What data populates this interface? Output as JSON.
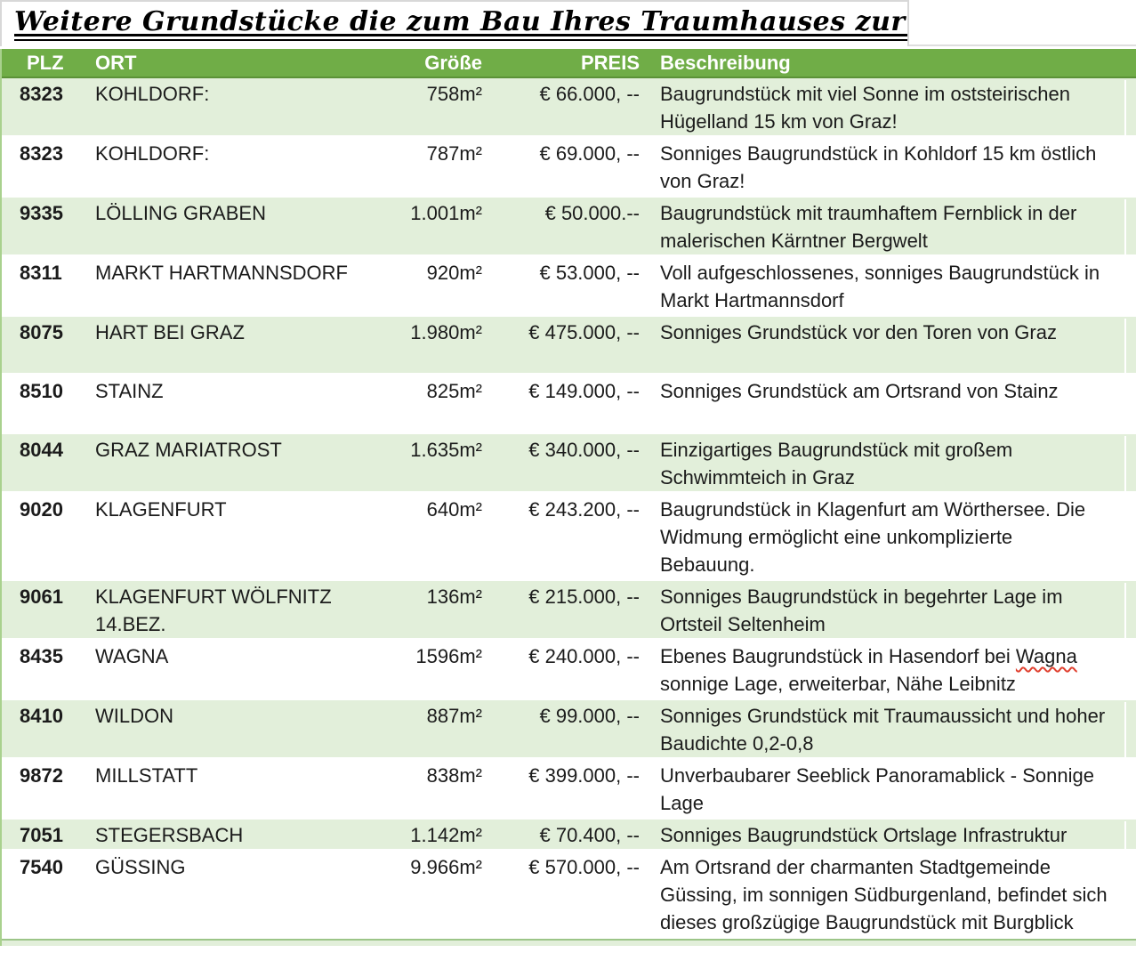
{
  "title": "Weitere Grundstücke die zum Bau Ihres Traumhauses zur Verfügung stehen",
  "colors": {
    "header_green": "#70AD47",
    "banded_row_green": "#E2EFDA",
    "header_text": "#FFFFFF",
    "body_text": "#1B1B1B",
    "spellcheck_underline_red": "#E0402F"
  },
  "table": {
    "columns": [
      {
        "key": "plz",
        "label": "PLZ"
      },
      {
        "key": "ort",
        "label": "ORT"
      },
      {
        "key": "groesse",
        "label": "Größe"
      },
      {
        "key": "preis",
        "label": "PREIS"
      },
      {
        "key": "beschreibung",
        "label": "Beschreibung"
      }
    ],
    "rows": [
      {
        "plz": "8323",
        "ort": "KOHLDORF:",
        "groesse": "758m²",
        "preis": "€ 66.000, --",
        "beschreibung": "Baugrundstück mit viel Sonne im oststeirischen Hügelland 15 km von Graz!"
      },
      {
        "plz": "8323",
        "ort": "KOHLDORF:",
        "groesse": "787m²",
        "preis": "€ 69.000, --",
        "beschreibung": "Sonniges Baugrundstück in Kohldorf 15 km östlich von Graz!"
      },
      {
        "plz": "9335",
        "ort": "LÖLLING GRABEN",
        "groesse": "1.001m²",
        "preis": "€ 50.000.--",
        "beschreibung": "Baugrundstück mit traumhaftem Fernblick in der malerischen Kärntner Bergwelt"
      },
      {
        "plz": "8311",
        "ort": "MARKT HARTMANNSDORF",
        "groesse": "920m²",
        "preis": "€ 53.000, --",
        "beschreibung": "Voll aufgeschlossenes, sonniges Baugrundstück in Markt Hartmannsdorf"
      },
      {
        "plz": "8075",
        "ort": "HART BEI GRAZ",
        "groesse": "1.980m²",
        "preis": "€ 475.000, --",
        "beschreibung": "Sonniges Grundstück vor den Toren von Graz"
      },
      {
        "plz": "8510",
        "ort": "STAINZ",
        "groesse": "825m²",
        "preis": "€ 149.000, --",
        "beschreibung": "Sonniges Grundstück am Ortsrand von Stainz"
      },
      {
        "plz": "8044",
        "ort": "GRAZ MARIATROST",
        "groesse": "1.635m²",
        "preis": "€ 340.000, --",
        "beschreibung": "Einzigartiges Baugrundstück mit großem Schwimmteich in Graz"
      },
      {
        "plz": "9020",
        "ort": "KLAGENFURT",
        "groesse": "640m²",
        "preis": "€ 243.200, --",
        "beschreibung": "Baugrundstück in Klagenfurt am Wörthersee. Die Widmung ermöglicht eine unkomplizierte Bebauung."
      },
      {
        "plz": "9061",
        "ort": "KLAGENFURT WÖLFNITZ 14.BEZ.",
        "groesse": "136m²",
        "preis": "€ 215.000, --",
        "beschreibung": "Sonniges Baugrundstück in begehrter Lage im Ortsteil Seltenheim"
      },
      {
        "plz": "8435",
        "ort": "WAGNA",
        "groesse": "1596m²",
        "preis": "€ 240.000, --",
        "beschreibung": "Ebenes Baugrundstück in Hasendorf bei Wagna sonnige Lage, erweiterbar, Nähe Leibnitz",
        "misspelled_word": "Wagna"
      },
      {
        "plz": "8410",
        "ort": "WILDON",
        "groesse": "887m²",
        "preis": "€ 99.000, --",
        "beschreibung": "Sonniges Grundstück mit Traumaussicht und hoher Baudichte 0,2-0,8"
      },
      {
        "plz": "9872",
        "ort": "MILLSTATT",
        "groesse": "838m²",
        "preis": "€ 399.000, --",
        "beschreibung": "Unverbaubarer Seeblick Panoramablick - Sonnige Lage"
      },
      {
        "plz": "7051",
        "ort": "STEGERSBACH",
        "groesse": "1.142m²",
        "preis": "€ 70.400, --",
        "beschreibung": "Sonniges Baugrundstück Ortslage Infrastruktur",
        "compact": true
      },
      {
        "plz": "7540",
        "ort": "GÜSSING",
        "groesse": "9.966m²",
        "preis": "€ 570.000, --",
        "beschreibung": "Am Ortsrand der charmanten Stadtgemeinde Güssing, im sonnigen Südburgenland, befindet sich dieses großzügige Baugrundstück mit Burgblick"
      }
    ]
  }
}
